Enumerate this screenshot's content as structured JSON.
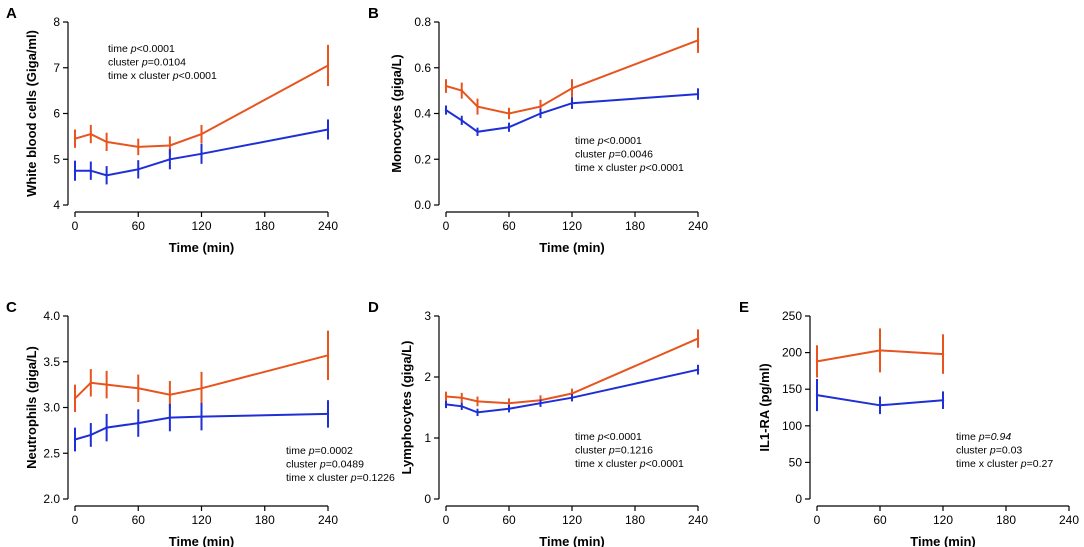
{
  "chart_data": [
    {
      "id": "A",
      "letter": "A",
      "type": "line",
      "xlabel": "Time (min)",
      "ylabel": "White blood cells (Giga/ml)",
      "xlim": [
        0,
        240
      ],
      "xticks": [
        0,
        60,
        120,
        180,
        240
      ],
      "ylim": [
        4,
        8
      ],
      "yticks": [
        4,
        5,
        6,
        7,
        8
      ],
      "ytick_labels": [
        "4",
        "5",
        "6",
        "7",
        "8"
      ],
      "series": [
        {
          "name": "cluster orange",
          "color": "#e8541e",
          "x": [
            0,
            15,
            30,
            60,
            90,
            120,
            240
          ],
          "values": [
            5.45,
            5.55,
            5.38,
            5.27,
            5.3,
            5.55,
            7.05
          ],
          "err": [
            0.2,
            0.2,
            0.2,
            0.18,
            0.2,
            0.2,
            0.45
          ]
        },
        {
          "name": "cluster blue",
          "color": "#1f2fd6",
          "x": [
            0,
            15,
            30,
            60,
            90,
            120,
            240
          ],
          "values": [
            4.75,
            4.75,
            4.65,
            4.78,
            5.0,
            5.12,
            5.65
          ],
          "err": [
            0.22,
            0.2,
            0.2,
            0.2,
            0.22,
            0.22,
            0.22
          ]
        }
      ],
      "stats": [
        [
          {
            "t": "time "
          },
          {
            "t": "p",
            "i": true
          },
          {
            "t": "<0.0001"
          }
        ],
        [
          {
            "t": "cluster "
          },
          {
            "t": "p",
            "i": true
          },
          {
            "t": "=0.0104"
          }
        ],
        [
          {
            "t": "time x cluster "
          },
          {
            "t": "p",
            "i": true
          },
          {
            "t": "<0.0001"
          }
        ]
      ]
    },
    {
      "id": "B",
      "letter": "B",
      "type": "line",
      "xlabel": "Time (min)",
      "ylabel": "Monocytes (giga/L)",
      "xlim": [
        0,
        240
      ],
      "xticks": [
        0,
        60,
        120,
        180,
        240
      ],
      "ylim": [
        0,
        0.8
      ],
      "yticks": [
        0,
        0.2,
        0.4,
        0.6,
        0.8
      ],
      "ytick_labels": [
        "0.0",
        "0.2",
        "0.4",
        "0.6",
        "0.8"
      ],
      "series": [
        {
          "name": "cluster orange",
          "color": "#e8541e",
          "x": [
            0,
            15,
            30,
            60,
            90,
            120,
            240
          ],
          "values": [
            0.52,
            0.5,
            0.43,
            0.4,
            0.43,
            0.51,
            0.72
          ],
          "err": [
            0.03,
            0.035,
            0.035,
            0.025,
            0.03,
            0.04,
            0.055
          ]
        },
        {
          "name": "cluster blue",
          "color": "#1f2fd6",
          "x": [
            0,
            15,
            30,
            60,
            90,
            120,
            240
          ],
          "values": [
            0.415,
            0.37,
            0.32,
            0.34,
            0.4,
            0.445,
            0.485
          ],
          "err": [
            0.02,
            0.02,
            0.018,
            0.02,
            0.02,
            0.025,
            0.025
          ]
        }
      ],
      "stats": [
        [
          {
            "t": "time "
          },
          {
            "t": "p",
            "i": true
          },
          {
            "t": "<0.0001"
          }
        ],
        [
          {
            "t": "cluster "
          },
          {
            "t": "p",
            "i": true
          },
          {
            "t": "=0.0046"
          }
        ],
        [
          {
            "t": "time x cluster "
          },
          {
            "t": "p",
            "i": true
          },
          {
            "t": "<0.0001"
          }
        ]
      ]
    },
    {
      "id": "C",
      "letter": "C",
      "type": "line",
      "xlabel": "Time (min)",
      "ylabel": "Neutrophils (giga/L)",
      "xlim": [
        0,
        240
      ],
      "xticks": [
        0,
        60,
        120,
        180,
        240
      ],
      "ylim": [
        2,
        4
      ],
      "yticks": [
        2,
        2.5,
        3,
        3.5,
        4
      ],
      "ytick_labels": [
        "2.0",
        "2.5",
        "3.0",
        "3.5",
        "4.0"
      ],
      "series": [
        {
          "name": "cluster orange",
          "color": "#e8541e",
          "x": [
            0,
            15,
            30,
            60,
            90,
            120,
            240
          ],
          "values": [
            3.1,
            3.27,
            3.25,
            3.21,
            3.14,
            3.21,
            3.57
          ],
          "err": [
            0.15,
            0.15,
            0.15,
            0.15,
            0.15,
            0.18,
            0.27
          ]
        },
        {
          "name": "cluster blue",
          "color": "#1f2fd6",
          "x": [
            0,
            15,
            30,
            60,
            90,
            120,
            240
          ],
          "values": [
            2.65,
            2.7,
            2.78,
            2.83,
            2.89,
            2.9,
            2.93
          ],
          "err": [
            0.13,
            0.13,
            0.15,
            0.15,
            0.15,
            0.15,
            0.15
          ]
        }
      ],
      "stats": [
        [
          {
            "t": "time "
          },
          {
            "t": "p",
            "i": true
          },
          {
            "t": "=0.0002"
          }
        ],
        [
          {
            "t": "cluster "
          },
          {
            "t": "p",
            "i": true
          },
          {
            "t": "=0.0489"
          }
        ],
        [
          {
            "t": "time x cluster "
          },
          {
            "t": "p",
            "i": true
          },
          {
            "t": "=0.1226"
          }
        ]
      ]
    },
    {
      "id": "D",
      "letter": "D",
      "type": "line",
      "xlabel": "Time (min)",
      "ylabel": "Lymphocytes (giga/L)",
      "xlim": [
        0,
        240
      ],
      "xticks": [
        0,
        60,
        120,
        180,
        240
      ],
      "ylim": [
        0,
        3
      ],
      "yticks": [
        0,
        1,
        2,
        3
      ],
      "ytick_labels": [
        "0",
        "1",
        "2",
        "3"
      ],
      "series": [
        {
          "name": "cluster orange",
          "color": "#e8541e",
          "x": [
            0,
            15,
            30,
            60,
            90,
            120,
            240
          ],
          "values": [
            1.68,
            1.66,
            1.6,
            1.57,
            1.62,
            1.73,
            2.63
          ],
          "err": [
            0.08,
            0.08,
            0.08,
            0.08,
            0.08,
            0.08,
            0.15
          ]
        },
        {
          "name": "cluster blue",
          "color": "#1f2fd6",
          "x": [
            0,
            15,
            30,
            60,
            90,
            120,
            240
          ],
          "values": [
            1.55,
            1.52,
            1.42,
            1.48,
            1.57,
            1.66,
            2.12
          ],
          "err": [
            0.06,
            0.06,
            0.06,
            0.06,
            0.06,
            0.06,
            0.08
          ]
        }
      ],
      "stats": [
        [
          {
            "t": "time "
          },
          {
            "t": "p",
            "i": true
          },
          {
            "t": "<0.0001"
          }
        ],
        [
          {
            "t": "cluster "
          },
          {
            "t": "p",
            "i": true
          },
          {
            "t": "=0.1216"
          }
        ],
        [
          {
            "t": "time x cluster "
          },
          {
            "t": "p",
            "i": true
          },
          {
            "t": "<0.0001"
          }
        ]
      ]
    },
    {
      "id": "E",
      "letter": "E",
      "type": "line",
      "xlabel": "Time (min)",
      "ylabel": "IL1-RA (pg/ml)",
      "xlim": [
        0,
        240
      ],
      "xticks": [
        0,
        60,
        120,
        180,
        240
      ],
      "ylim": [
        0,
        250
      ],
      "yticks": [
        0,
        50,
        100,
        150,
        200,
        250
      ],
      "ytick_labels": [
        "0",
        "50",
        "100",
        "150",
        "200",
        "250"
      ],
      "series": [
        {
          "name": "cluster orange",
          "color": "#e8541e",
          "x": [
            0,
            60,
            120
          ],
          "values": [
            188,
            203,
            198
          ],
          "err": [
            22,
            30,
            27
          ]
        },
        {
          "name": "cluster blue",
          "color": "#1f2fd6",
          "x": [
            0,
            60,
            120
          ],
          "values": [
            142,
            128,
            135
          ],
          "err": [
            22,
            12,
            12
          ]
        }
      ],
      "stats": [
        [
          {
            "t": "time "
          },
          {
            "t": "p",
            "i": true
          },
          {
            "t": "="
          },
          {
            "t": "0.94",
            "i": true
          }
        ],
        [
          {
            "t": "cluster "
          },
          {
            "t": "p",
            "i": true
          },
          {
            "t": "=0.03"
          }
        ],
        [
          {
            "t": "time x cluster "
          },
          {
            "t": "p",
            "i": true
          },
          {
            "t": "=0.27"
          }
        ]
      ]
    }
  ]
}
